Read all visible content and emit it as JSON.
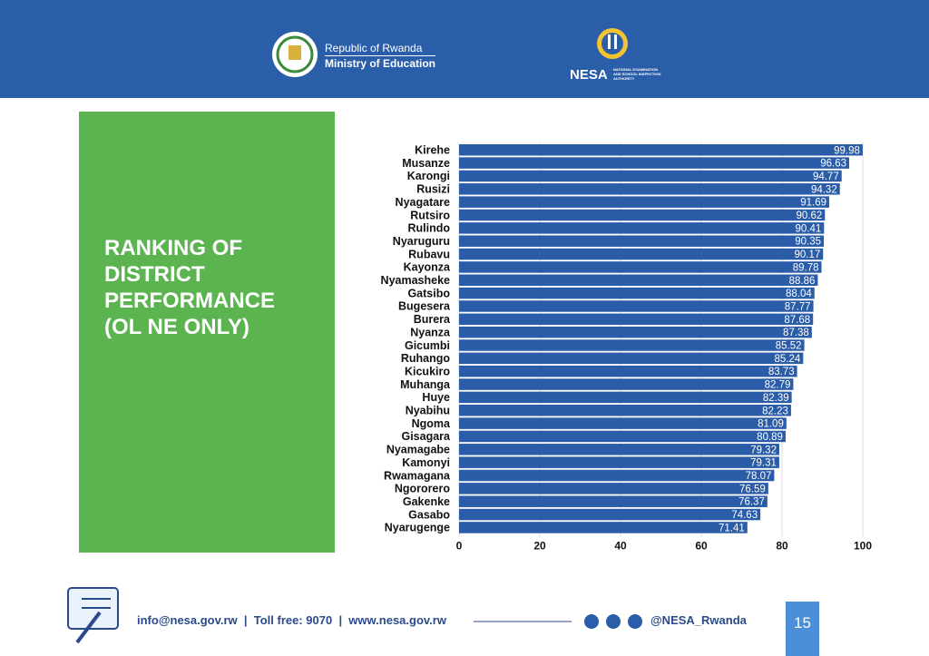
{
  "header": {
    "ministry_line1": "Republic of Rwanda",
    "ministry_line2": "Ministry of Education",
    "agency": "NESA",
    "agency_full": "NATIONAL EXAMINATION AND SCHOOL INSPECTION AUTHORITY"
  },
  "chart_data": {
    "type": "hbar",
    "title": "RANKING OF DISTRICT PERFORMANCE (OL NE ONLY)",
    "categories": [
      "Kirehe",
      "Musanze",
      "Karongi",
      "Rusizi",
      "Nyagatare",
      "Rutsiro",
      "Rulindo",
      "Nyaruguru",
      "Rubavu",
      "Kayonza",
      "Nyamasheke",
      "Gatsibo",
      "Bugesera",
      "Burera",
      "Nyanza",
      "Gicumbi",
      "Ruhango",
      "Kicukiro",
      "Muhanga",
      "Huye",
      "Nyabihu",
      "Ngoma",
      "Gisagara",
      "Nyamagabe",
      "Kamonyi",
      "Rwamagana",
      "Ngororero",
      "Gakenke",
      "Gasabo",
      "Nyarugenge"
    ],
    "values": [
      99.98,
      96.63,
      94.77,
      94.32,
      91.69,
      90.62,
      90.41,
      90.35,
      90.17,
      89.78,
      88.86,
      88.04,
      87.77,
      87.68,
      87.38,
      85.52,
      85.24,
      83.73,
      82.79,
      82.39,
      82.23,
      81.09,
      80.89,
      79.32,
      79.31,
      78.07,
      76.59,
      76.37,
      74.63,
      71.41
    ],
    "color": "#2b5ca8",
    "xlim": [
      0,
      100
    ],
    "xticks": [
      0,
      20,
      40,
      60,
      80,
      100
    ],
    "grid": true
  },
  "footer": {
    "contact": "info@nesa.gov.rw  |  Toll free: 9070  |  www.nesa.gov.rw",
    "social_handle": "@NESA_Rwanda",
    "page_number": "15"
  }
}
